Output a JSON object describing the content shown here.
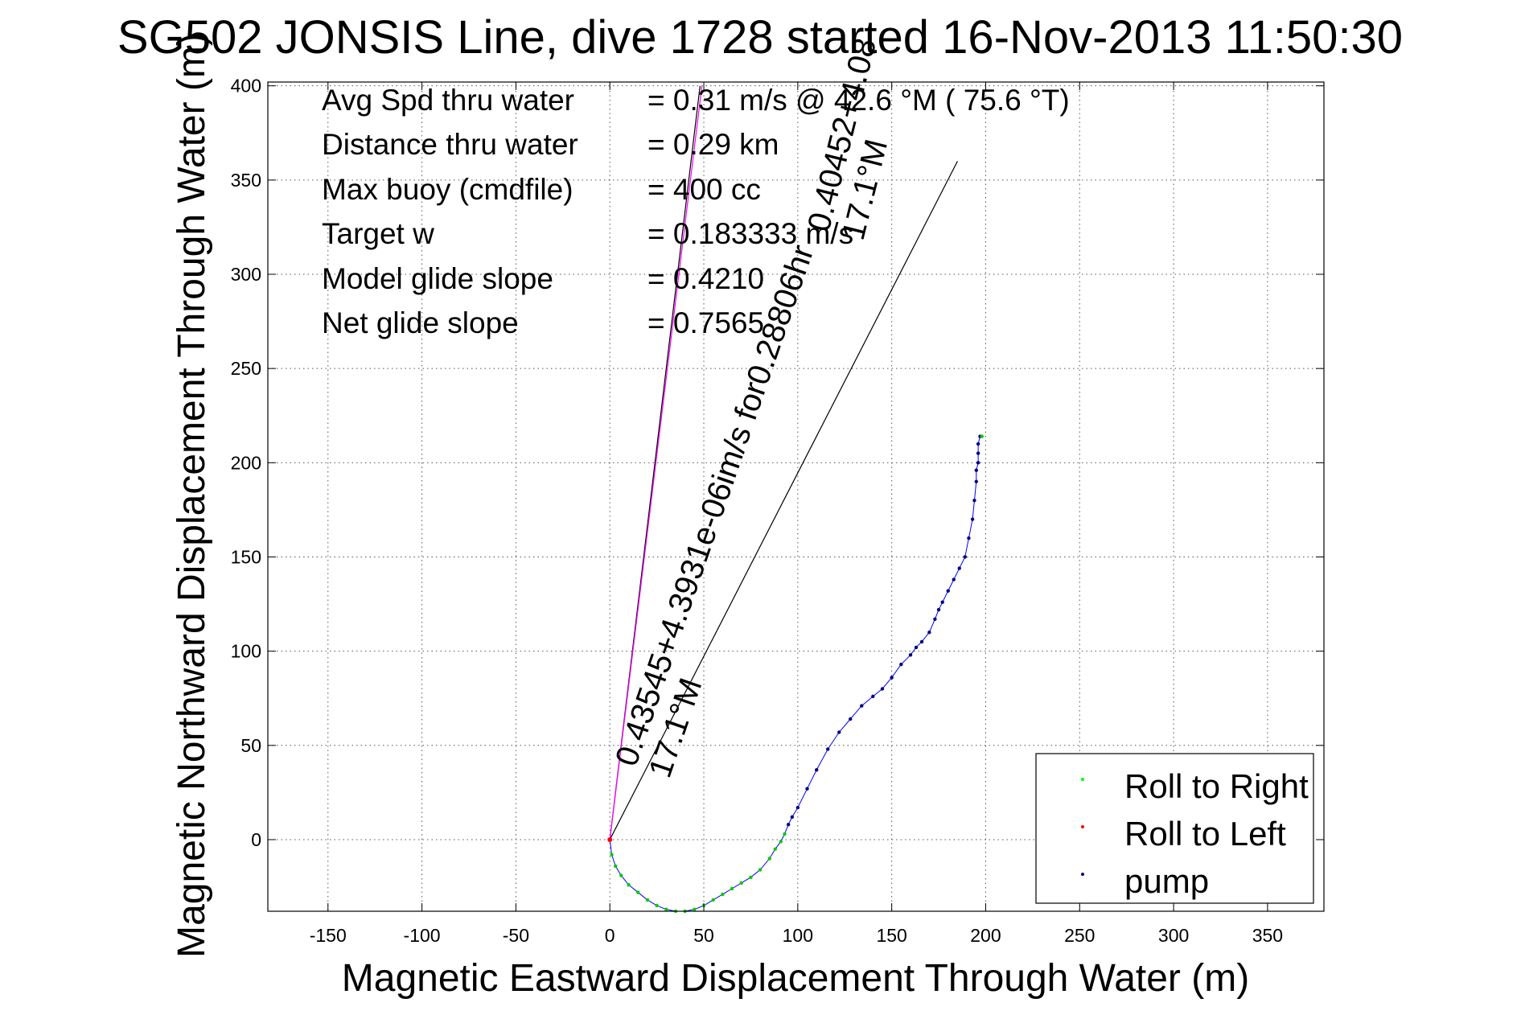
{
  "chart_data": {
    "type": "line",
    "title": "SG502 JONSIS Line, dive 1728 started 16-Nov-2013 11:50:30",
    "xlabel": "Magnetic Eastward Displacement Through Water (m)",
    "ylabel": "Magnetic Northward Displacement Through Water (m)",
    "xlim": [
      -182,
      380
    ],
    "ylim": [
      -38,
      402
    ],
    "xticks": [
      -150,
      -100,
      -50,
      0,
      50,
      100,
      150,
      200,
      250,
      300,
      350
    ],
    "yticks": [
      0,
      50,
      100,
      150,
      200,
      250,
      300,
      350,
      400
    ],
    "grid": true,
    "legend_position": "bottom-right",
    "annotations": [
      {
        "label": "Avg Spd thru water",
        "value": "=  0.31 m/s @  42.6 °M ( 75.6 °T)"
      },
      {
        "label": "Distance thru water",
        "value": "=  0.29 km"
      },
      {
        "label": "Max buoy (cmdfile)",
        "value": "= 400 cc"
      },
      {
        "label": "Target w",
        "value": "= 0.183333 m/s"
      },
      {
        "label": "Model glide slope",
        "value": "= 0.4210"
      },
      {
        "label": "Net glide slope",
        "value": "= 0.7565"
      }
    ],
    "slanted_labels": [
      {
        "text": "0.43545+4.3931e-06im/s for0.28806hr",
        "sub": "17.1°M"
      },
      {
        "text": "0.40452+4.08",
        "sub": "17.1°M"
      }
    ],
    "reference_lines": [
      {
        "name": "current",
        "x": [
          0,
          48
        ],
        "y": [
          0,
          400
        ]
      },
      {
        "name": "heading",
        "x": [
          0,
          185
        ],
        "y": [
          0,
          360
        ]
      },
      {
        "name": "drift",
        "x": [
          0,
          49
        ],
        "y": [
          0,
          400
        ]
      }
    ],
    "track": {
      "x": [
        0,
        1,
        3,
        6,
        10,
        15,
        20,
        25,
        30,
        35,
        40,
        45,
        50,
        55,
        60,
        65,
        70,
        75,
        80,
        85,
        88,
        91,
        93,
        95,
        97,
        100,
        105,
        110,
        116,
        122,
        128,
        134,
        140,
        145,
        150,
        155,
        160,
        163,
        166,
        170,
        173,
        175,
        177,
        180,
        183,
        186,
        189,
        191,
        193,
        194,
        195,
        195,
        196,
        196,
        196,
        197,
        198
      ],
      "y": [
        0,
        -8,
        -14,
        -19,
        -24,
        -28,
        -32,
        -35,
        -37,
        -38,
        -38,
        -37,
        -35,
        -32,
        -29,
        -26,
        -23,
        -20,
        -16,
        -10,
        -5,
        -1,
        3,
        8,
        12,
        17,
        27,
        37,
        48,
        57,
        64,
        71,
        76,
        80,
        86,
        93,
        98,
        102,
        105,
        110,
        117,
        122,
        126,
        132,
        138,
        144,
        150,
        160,
        170,
        180,
        190,
        196,
        200,
        205,
        210,
        214,
        214
      ],
      "roll_right_indices": [
        0,
        1,
        2,
        3,
        4,
        5,
        6,
        7,
        8,
        9,
        10,
        11,
        12,
        13,
        14,
        15,
        16,
        17,
        18,
        19,
        20,
        21,
        22,
        56
      ],
      "roll_left_indices": [
        0,
        1
      ],
      "pump_indices": [
        23,
        24,
        25,
        26,
        27,
        28,
        29,
        30,
        31,
        32,
        33,
        34,
        35,
        36,
        37,
        38,
        39,
        40,
        41,
        42,
        43,
        44,
        45,
        46,
        47,
        48,
        49,
        50,
        51,
        52,
        53,
        54,
        55
      ]
    },
    "legend": [
      {
        "label": "Roll to Right",
        "color": "#00ff00"
      },
      {
        "label": "Roll to Left",
        "color": "#ff0000"
      },
      {
        "label": "pump",
        "color": "#000080"
      }
    ]
  }
}
